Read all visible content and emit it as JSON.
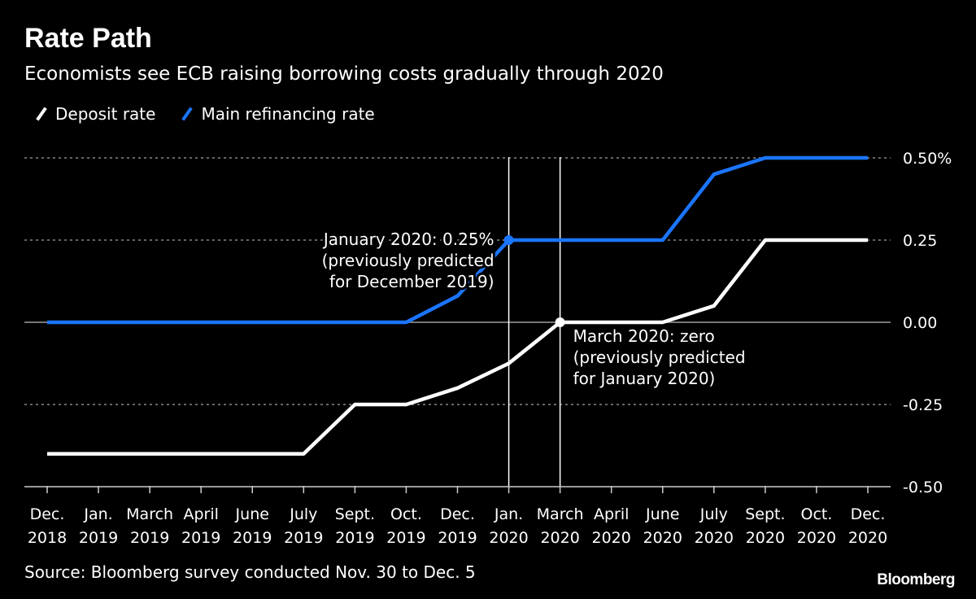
{
  "header": {
    "title": "Rate Path",
    "subtitle": "Economists see ECB raising borrowing costs gradually through 2020"
  },
  "footer": {
    "source": "Source: Bloomberg survey conducted Nov. 30 to Dec. 5",
    "logo": "Bloomberg"
  },
  "chart_data": {
    "type": "line",
    "title": "Rate Path",
    "subtitle": "Economists see ECB raising borrowing costs gradually through 2020",
    "categories": [
      [
        "Dec.",
        "2018"
      ],
      [
        "Jan.",
        "2019"
      ],
      [
        "March",
        "2019"
      ],
      [
        "April",
        "2019"
      ],
      [
        "June",
        "2019"
      ],
      [
        "July",
        "2019"
      ],
      [
        "Sept.",
        "2019"
      ],
      [
        "Oct.",
        "2019"
      ],
      [
        "Dec.",
        "2019"
      ],
      [
        "Jan.",
        "2020"
      ],
      [
        "March",
        "2020"
      ],
      [
        "April",
        "2020"
      ],
      [
        "June",
        "2020"
      ],
      [
        "July",
        "2020"
      ],
      [
        "Sept.",
        "2020"
      ],
      [
        "Oct.",
        "2020"
      ],
      [
        "Dec.",
        "2020"
      ]
    ],
    "series": [
      {
        "name": "Deposit rate",
        "color": "#ffffff",
        "values": [
          -0.4,
          -0.4,
          -0.4,
          -0.4,
          -0.4,
          -0.4,
          -0.25,
          -0.25,
          -0.2,
          -0.125,
          0.0,
          0.0,
          0.0,
          0.05,
          0.25,
          0.25,
          0.25
        ]
      },
      {
        "name": "Main refinancing rate",
        "color": "#1a75ff",
        "values": [
          0,
          0,
          0,
          0,
          0,
          0,
          0,
          0,
          0.08,
          0.25,
          0.25,
          0.25,
          0.25,
          0.45,
          0.5,
          0.5,
          0.5
        ]
      }
    ],
    "yticks": [
      "0.50%",
      "0.25",
      "0.00",
      "-0.25",
      "-0.50"
    ],
    "ytick_values": [
      0.5,
      0.25,
      0,
      -0.25,
      -0.5
    ],
    "ylim": [
      -0.5,
      0.5
    ],
    "grid": true,
    "legend": "top-left",
    "annotations": [
      {
        "category_index": 9,
        "series": "Main refinancing rate",
        "lines": [
          "January 2020: 0.25%",
          "(previously predicted",
          "for December 2019)"
        ]
      },
      {
        "category_index": 10,
        "series": "Deposit rate",
        "lines": [
          "March 2020: zero",
          "(previously predicted",
          "for January 2020)"
        ]
      }
    ]
  }
}
